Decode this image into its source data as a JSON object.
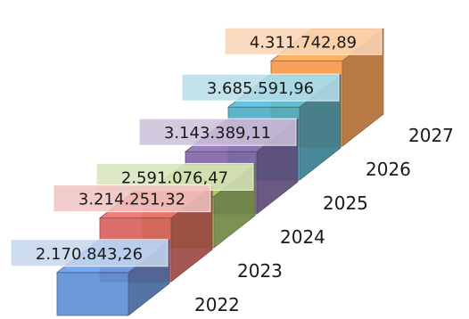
{
  "chart_data": {
    "type": "bar",
    "categories": [
      "2022",
      "2023",
      "2024",
      "2025",
      "2026",
      "2027"
    ],
    "values": [
      2170843.26,
      3214251.32,
      2591076.47,
      3143389.11,
      3685591.96,
      4311742.89
    ],
    "value_labels": [
      "2.170.843,26",
      "3.214.251,32",
      "2.591.076,47",
      "3.143.389,11",
      "3.685.591,96",
      "4.311.742,89"
    ],
    "title": "",
    "xlabel": "",
    "ylabel": "",
    "grid": false,
    "legend": "none",
    "style": "3d-stepped-bars",
    "colors": [
      "#5b8ed6",
      "#d9605b",
      "#9bbb59",
      "#8064a2",
      "#4bacc6",
      "#f79646"
    ],
    "label_colors": [
      "#c6d6ee",
      "#f0c4c2",
      "#d7e4bd",
      "#ccc1da",
      "#b7dee8",
      "#fbd5b5"
    ]
  }
}
